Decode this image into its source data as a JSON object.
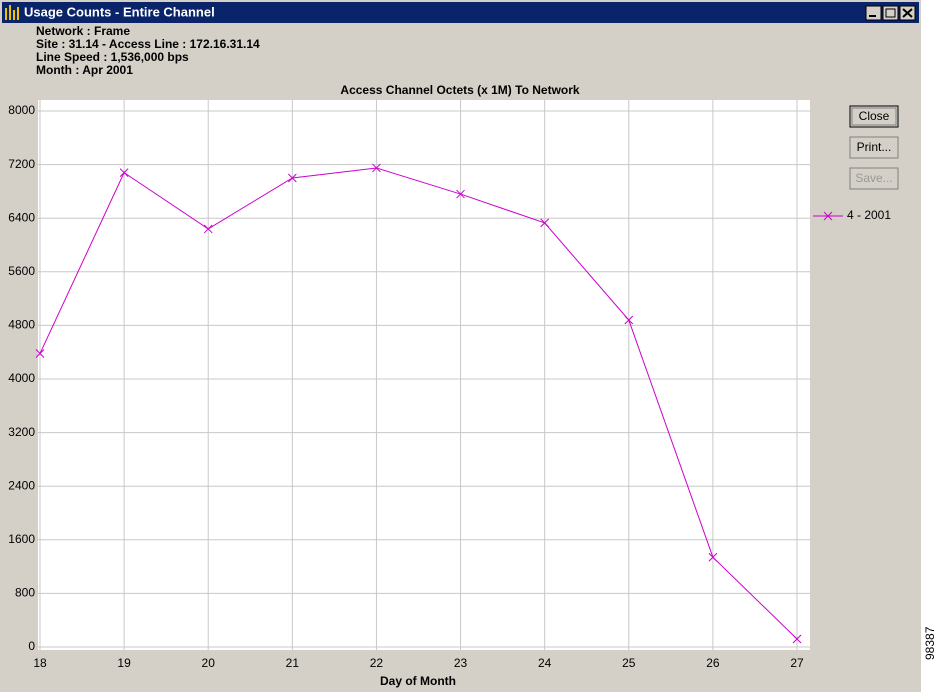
{
  "window": {
    "title": "Usage Counts - Entire Channel"
  },
  "info": [
    "Network : Frame",
    "Site : 31.14 - Access Line : 172.16.31.14",
    "Line Speed : 1,536,000 bps",
    "Month : Apr 2001"
  ],
  "buttons": [
    "Close",
    "Print...",
    "Save..."
  ],
  "figure_id": "98387",
  "chart_data": {
    "type": "line",
    "title": "Access Channel Octets (x 1M) To Network",
    "x_label": "Day of Month",
    "x": [
      18,
      19,
      20,
      21,
      22,
      23,
      24,
      25,
      26,
      27
    ],
    "series": [
      {
        "name": "4 - 2001",
        "color": "#cc00cc",
        "values": [
          4380,
          7080,
          6240,
          7000,
          7150,
          6760,
          6330,
          4880,
          1340,
          120
        ]
      }
    ],
    "xlim": [
      18,
      27
    ],
    "xticks": [
      18,
      19,
      20,
      21,
      22,
      23,
      24,
      25,
      26,
      27
    ],
    "ylim": [
      0,
      8000
    ],
    "yticks": [
      0,
      800,
      1600,
      2400,
      3200,
      4000,
      4800,
      5600,
      6400,
      7200,
      8000
    ],
    "grid": true
  }
}
